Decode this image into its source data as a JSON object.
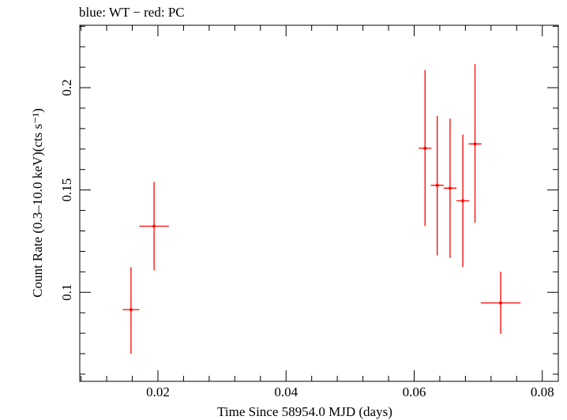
{
  "chart_data": {
    "type": "scatter",
    "title": "blue: WT − red: PC",
    "xlabel": "Time Since 58954.0 MJD (days)",
    "ylabel": "Count Rate (0.3–10.0 keV)(cts s⁻¹)",
    "xlim": [
      0.0078,
      0.0825
    ],
    "ylim": [
      0.0565,
      0.2305
    ],
    "x_ticks": [
      0.02,
      0.04,
      0.06,
      0.08
    ],
    "x_tick_labels": [
      "0.02",
      "0.04",
      "0.06",
      "0.08"
    ],
    "y_ticks": [
      0.1,
      0.15,
      0.2
    ],
    "y_tick_labels": [
      "0.1",
      "0.15",
      "0.2"
    ],
    "grid": false,
    "series": [
      {
        "name": "PC",
        "color": "#ff0000",
        "points": [
          {
            "x": 0.0158,
            "xerr": 0.0013,
            "y": 0.0915,
            "ylo": 0.07,
            "yhi": 0.1123
          },
          {
            "x": 0.0194,
            "xerr": 0.0023,
            "y": 0.1323,
            "ylo": 0.1107,
            "yhi": 0.154
          },
          {
            "x": 0.0617,
            "xerr": 0.001,
            "y": 0.1704,
            "ylo": 0.1324,
            "yhi": 0.2087
          },
          {
            "x": 0.0636,
            "xerr": 0.001,
            "y": 0.1523,
            "ylo": 0.118,
            "yhi": 0.1863
          },
          {
            "x": 0.0656,
            "xerr": 0.001,
            "y": 0.1509,
            "ylo": 0.1168,
            "yhi": 0.1849
          },
          {
            "x": 0.0676,
            "xerr": 0.001,
            "y": 0.1447,
            "ylo": 0.1124,
            "yhi": 0.1771
          },
          {
            "x": 0.0695,
            "xerr": 0.001,
            "y": 0.1725,
            "ylo": 0.134,
            "yhi": 0.2115
          },
          {
            "x": 0.0735,
            "xerr": 0.0031,
            "y": 0.0948,
            "ylo": 0.0797,
            "yhi": 0.11
          }
        ]
      }
    ]
  }
}
